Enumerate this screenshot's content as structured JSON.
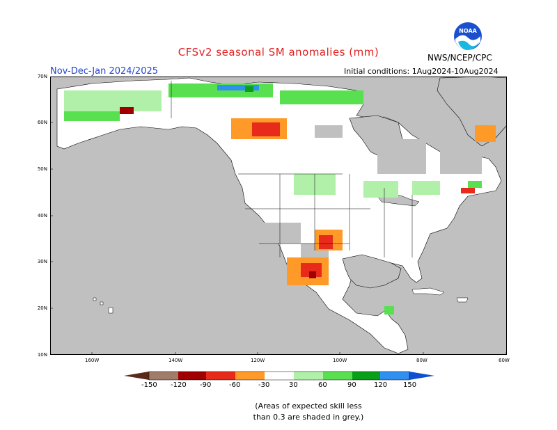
{
  "header": {
    "title": "CFSv2 seasonal SM anomalies (mm)",
    "agency": "NWS/NCEP/CPC",
    "season": "Nov-Dec-Jan 2024/2025",
    "initial_conditions": "Initial conditions: 1Aug2024-10Aug2024"
  },
  "logo": {
    "text": "NOAA"
  },
  "map": {
    "lat_labels": [
      "70N",
      "60N",
      "50N",
      "40N",
      "30N",
      "20N",
      "10N"
    ],
    "lon_labels": [
      "160W",
      "140W",
      "120W",
      "100W",
      "80W",
      "60W"
    ],
    "ocean_color": "#c0c0c0",
    "land_color": "#ffffff",
    "skill_mask_color": "#c0c0c0"
  },
  "legend": {
    "thresholds": [
      "-150",
      "-120",
      "-90",
      "-60",
      "-30",
      "30",
      "60",
      "90",
      "120",
      "150"
    ],
    "colors": {
      "below_-150": "#5a2a1a",
      "-150_-120": "#a27c6a",
      "-120_-90": "#a00000",
      "-90_-60": "#e82a1a",
      "-60_-30": "#ff9a28",
      "-30_-30": "#ffffff",
      "30_60": "#b0f0a8",
      "60_90": "#58e050",
      "90_120": "#08a018",
      "120_150": "#3090f0",
      "above_150": "#1050d0"
    }
  },
  "caption": {
    "line1": "(Areas of expected skill less",
    "line2": "than 0.3 are shaded in grey.)"
  }
}
